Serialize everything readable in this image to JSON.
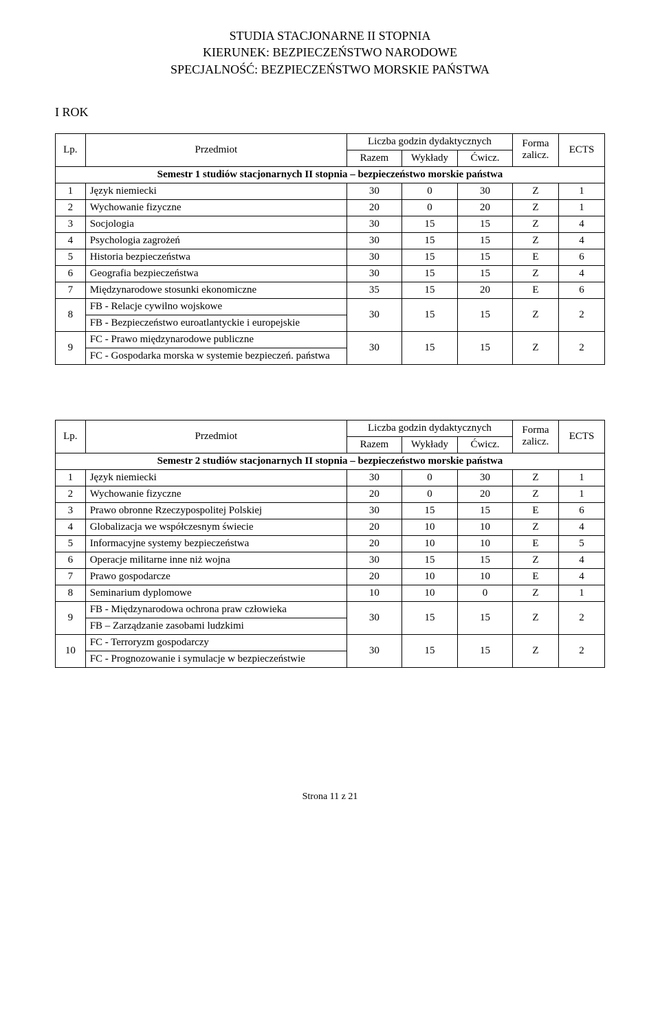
{
  "header": {
    "line1": "STUDIA STACJONARNE II STOPNIA",
    "line2": "KIERUNEK: BEZPIECZEŃSTWO NARODOWE",
    "line3": "SPECJALNOŚĆ: BEZPIECZEŃSTWO MORSKIE PAŃSTWA"
  },
  "irok": "I ROK",
  "tableHeaders": {
    "lp": "Lp.",
    "przedmiot": "Przedmiot",
    "liczba": "Liczba godzin dydaktycznych",
    "razem": "Razem",
    "wyklady": "Wykłady",
    "cwicz": "Ćwicz.",
    "forma": "Forma zalicz.",
    "ects": "ECTS"
  },
  "table1": {
    "semesterTitle": "Semestr 1 studiów stacjonarnych II stopnia – bezpieczeństwo morskie państwa",
    "rows": [
      {
        "lp": "1",
        "subject": "Język niemiecki",
        "r": "30",
        "w": "0",
        "c": "30",
        "f": "Z",
        "e": "1"
      },
      {
        "lp": "2",
        "subject": "Wychowanie fizyczne",
        "r": "20",
        "w": "0",
        "c": "20",
        "f": "Z",
        "e": "1"
      },
      {
        "lp": "3",
        "subject": "Socjologia",
        "r": "30",
        "w": "15",
        "c": "15",
        "f": "Z",
        "e": "4"
      },
      {
        "lp": "4",
        "subject": "Psychologia zagrożeń",
        "r": "30",
        "w": "15",
        "c": "15",
        "f": "Z",
        "e": "4"
      },
      {
        "lp": "5",
        "subject": "Historia bezpieczeństwa",
        "r": "30",
        "w": "15",
        "c": "15",
        "f": "E",
        "e": "6"
      },
      {
        "lp": "6",
        "subject": "Geografia bezpieczeństwa",
        "r": "30",
        "w": "15",
        "c": "15",
        "f": "Z",
        "e": "4"
      },
      {
        "lp": "7",
        "subject": "Międzynarodowe stosunki ekonomiczne",
        "r": "35",
        "w": "15",
        "c": "20",
        "f": "E",
        "e": "6"
      }
    ],
    "row8": {
      "lp": "8",
      "subjectA": "FB - Relacje cywilno wojskowe",
      "subjectB": "FB - Bezpieczeństwo euroatlantyckie i europejskie",
      "r": "30",
      "w": "15",
      "c": "15",
      "f": "Z",
      "e": "2"
    },
    "row9": {
      "lp": "9",
      "subjectA": "FC - Prawo międzynarodowe publiczne",
      "subjectB": "FC - Gospodarka morska w systemie bezpieczeń. państwa",
      "r": "30",
      "w": "15",
      "c": "15",
      "f": "Z",
      "e": "2"
    }
  },
  "table2": {
    "semesterTitle": "Semestr 2 studiów stacjonarnych II stopnia – bezpieczeństwo morskie państwa",
    "rows": [
      {
        "lp": "1",
        "subject": "Język niemiecki",
        "r": "30",
        "w": "0",
        "c": "30",
        "f": "Z",
        "e": "1"
      },
      {
        "lp": "2",
        "subject": "Wychowanie fizyczne",
        "r": "20",
        "w": "0",
        "c": "20",
        "f": "Z",
        "e": "1"
      },
      {
        "lp": "3",
        "subject": "Prawo obronne Rzeczypospolitej Polskiej",
        "r": "30",
        "w": "15",
        "c": "15",
        "f": "E",
        "e": "6"
      },
      {
        "lp": "4",
        "subject": "Globalizacja we współczesnym świecie",
        "r": "20",
        "w": "10",
        "c": "10",
        "f": "Z",
        "e": "4"
      },
      {
        "lp": "5",
        "subject": "Informacyjne systemy bezpieczeństwa",
        "r": "20",
        "w": "10",
        "c": "10",
        "f": "E",
        "e": "5"
      },
      {
        "lp": "6",
        "subject": "Operacje militarne inne niż wojna",
        "r": "30",
        "w": "15",
        "c": "15",
        "f": "Z",
        "e": "4"
      },
      {
        "lp": "7",
        "subject": "Prawo gospodarcze",
        "r": "20",
        "w": "10",
        "c": "10",
        "f": "E",
        "e": "4"
      },
      {
        "lp": "8",
        "subject": "Seminarium dyplomowe",
        "r": "10",
        "w": "10",
        "c": "0",
        "f": "Z",
        "e": "1"
      }
    ],
    "row9": {
      "lp": "9",
      "subjectA": "FB - Międzynarodowa ochrona praw człowieka",
      "subjectB": "FB – Zarządzanie zasobami ludzkimi",
      "r": "30",
      "w": "15",
      "c": "15",
      "f": "Z",
      "e": "2"
    },
    "row10": {
      "lp": "10",
      "subjectA": "FC - Terroryzm gospodarczy",
      "subjectB": "FC - Prognozowanie i symulacje w bezpieczeństwie",
      "r": "30",
      "w": "15",
      "c": "15",
      "f": "Z",
      "e": "2"
    }
  },
  "footer": "Strona 11 z 21"
}
